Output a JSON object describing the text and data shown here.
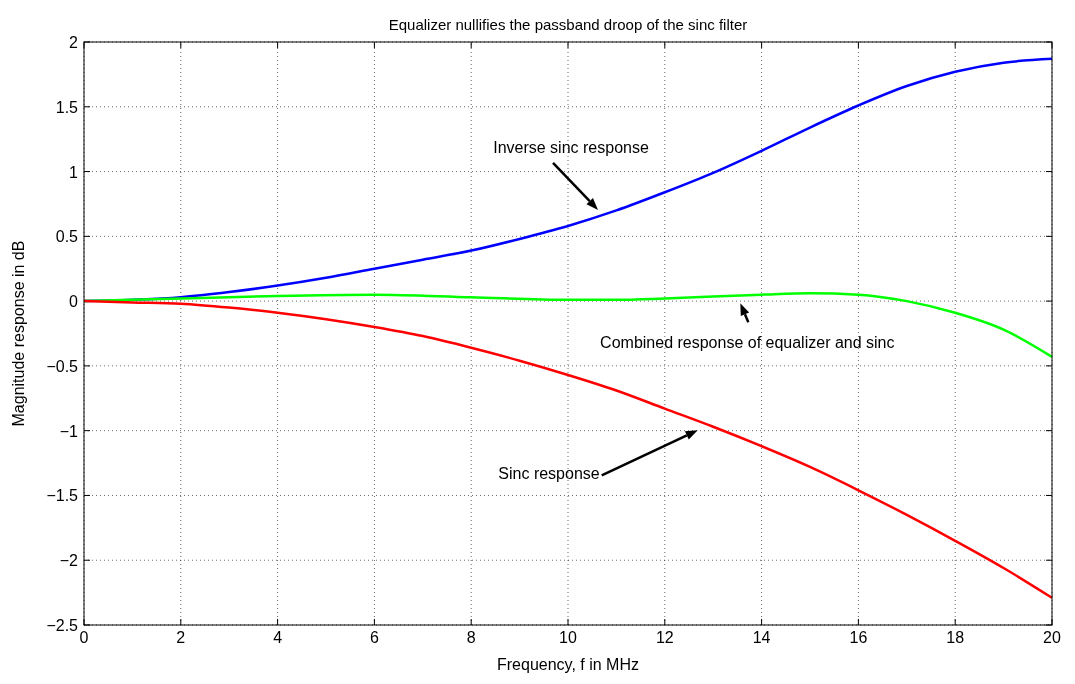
{
  "chart_data": {
    "type": "line",
    "title": "Equalizer nullifies the passband droop of the sinc filter",
    "xlabel": "Frequency, f in MHz",
    "ylabel": "Magnitude response in dB",
    "series": [
      {
        "color": "#0000ff",
        "x": [
          0,
          1,
          2,
          3,
          4,
          5,
          6,
          7,
          8,
          9,
          10,
          11,
          12,
          13,
          14,
          15,
          16,
          17,
          18,
          19,
          20
        ],
        "values": [
          0,
          null,
          0.03,
          0.07,
          0.12,
          0.18,
          0.25,
          0.32,
          0.39,
          0.48,
          0.58,
          0.7,
          0.84,
          0.99,
          1.16,
          1.34,
          1.51,
          1.66,
          1.77,
          1.84,
          1.87
        ]
      },
      {
        "color": "#00ff00",
        "x": [
          0,
          2,
          4,
          6,
          8,
          10,
          11,
          12,
          14,
          15,
          16,
          17,
          18,
          19,
          20
        ],
        "values": [
          0,
          0.02,
          0.04,
          0.05,
          0.03,
          0.01,
          0.01,
          0.02,
          0.05,
          0.06,
          0.05,
          0,
          -0.09,
          -0.22,
          -0.43
        ]
      },
      {
        "color": "#ff0000",
        "x": [
          0,
          1,
          2,
          3,
          4,
          5,
          6,
          7,
          8,
          9,
          10,
          11,
          12,
          13,
          14,
          15,
          16,
          17,
          18,
          19,
          20
        ],
        "values": [
          0,
          -0.01,
          -0.02,
          -0.05,
          -0.09,
          -0.14,
          -0.2,
          -0.27,
          -0.36,
          -0.46,
          -0.57,
          -0.69,
          -0.83,
          -0.97,
          -1.12,
          -1.28,
          -1.46,
          -1.65,
          -1.85,
          -2.06,
          -2.29
        ]
      }
    ],
    "xlim": [
      0,
      20
    ],
    "xticks": [
      0,
      2,
      4,
      6,
      8,
      10,
      12,
      14,
      16,
      18,
      20
    ],
    "ylim": [
      -2.5,
      2
    ],
    "yticks": [
      -2.5,
      -2,
      -1.5,
      -1,
      -0.5,
      0,
      0.5,
      1,
      1.5,
      2
    ],
    "grid": true,
    "line_style": "solid",
    "annotations": [
      "Inverse sinc response",
      "Combined response of equalizer and sinc",
      "Sinc response"
    ]
  }
}
